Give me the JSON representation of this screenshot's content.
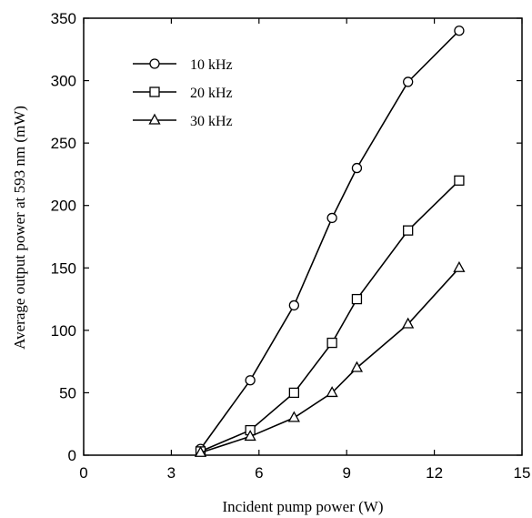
{
  "chart_data": {
    "type": "line",
    "xlabel": "Incident pump power (W)",
    "ylabel": "Average output power at 593 nm (mW)",
    "xlim": [
      0,
      15
    ],
    "ylim": [
      0,
      350
    ],
    "xticks": [
      0,
      3,
      6,
      9,
      12,
      15
    ],
    "yticks": [
      0,
      50,
      100,
      150,
      200,
      250,
      300,
      350
    ],
    "grid": false,
    "legend_position": "top-left",
    "series": [
      {
        "name": "10 kHz",
        "marker": "circle",
        "x": [
          4.0,
          5.7,
          7.2,
          8.5,
          9.35,
          11.1,
          12.85
        ],
        "y": [
          5,
          60,
          120,
          190,
          230,
          299,
          340
        ]
      },
      {
        "name": "20 kHz",
        "marker": "square",
        "x": [
          4.0,
          5.7,
          7.2,
          8.5,
          9.35,
          11.1,
          12.85
        ],
        "y": [
          3,
          20,
          50,
          90,
          125,
          180,
          220
        ]
      },
      {
        "name": "30 kHz",
        "marker": "triangle",
        "x": [
          4.0,
          5.7,
          7.2,
          8.5,
          9.35,
          11.1,
          12.85
        ],
        "y": [
          2,
          15,
          30,
          50,
          70,
          105,
          150
        ]
      }
    ]
  }
}
